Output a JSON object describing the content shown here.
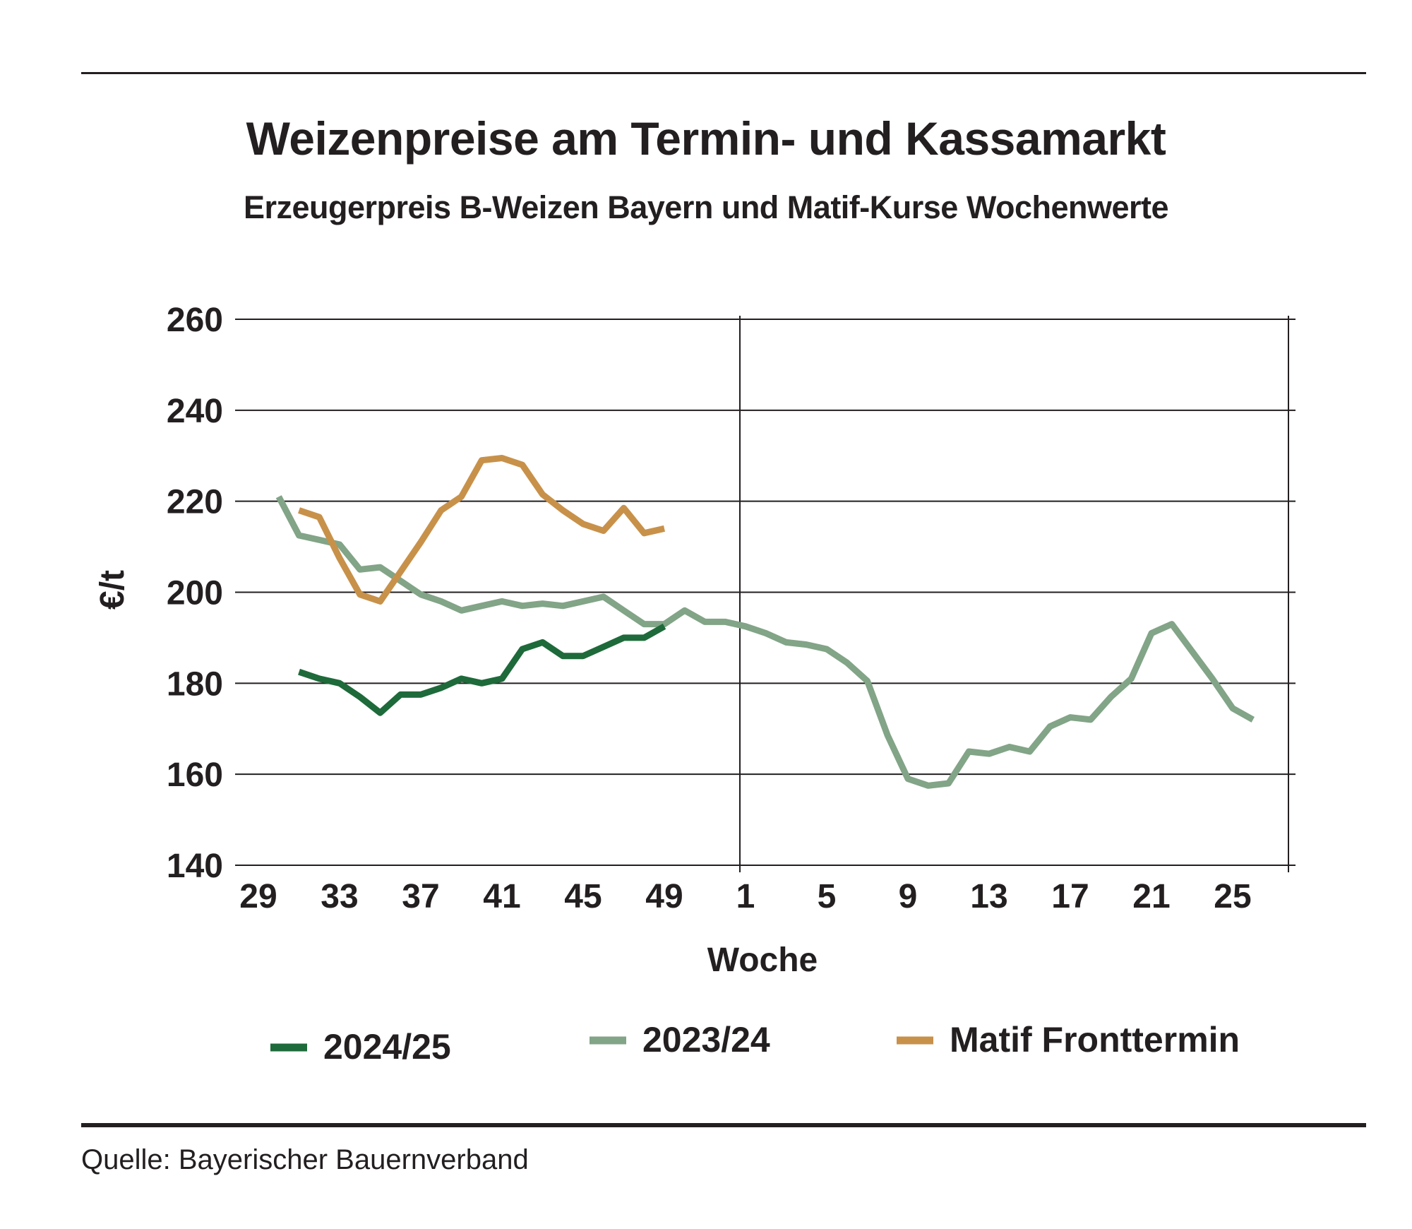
{
  "header": {
    "title": "Weizenpreise am Termin- und Kassamarkt",
    "subtitle": "Erzeugerpreis B-Weizen Bayern und Matif-Kurse Wochenwerte"
  },
  "footer": {
    "source": "Quelle: Bayerischer Bauernverband"
  },
  "chart_data": {
    "type": "line",
    "title": "Weizenpreise am Termin- und Kassamarkt",
    "subtitle": "Erzeugerpreis B-Weizen Bayern und Matif-Kurse Wochenwerte",
    "xlabel": "Woche",
    "ylabel": "€/t",
    "ylim": [
      140,
      260
    ],
    "yticks": [
      140,
      160,
      180,
      200,
      220,
      240,
      260
    ],
    "xticks": [
      "29",
      "33",
      "37",
      "41",
      "45",
      "49",
      "1",
      "5",
      "9",
      "13",
      "17",
      "21",
      "25"
    ],
    "grid": "horizontal",
    "legend_position": "bottom",
    "series": [
      {
        "name": "2024/25",
        "color": "#1e6a3a",
        "x": [
          31,
          32,
          33,
          34,
          35,
          36,
          37,
          38,
          39,
          40,
          41,
          42,
          43,
          44,
          45,
          46,
          47,
          48,
          49
        ],
        "y": [
          182.5,
          181,
          180,
          177,
          173.5,
          177.5,
          177.5,
          179,
          181,
          180,
          181,
          187.5,
          189,
          186,
          186,
          188,
          190,
          190,
          192.5
        ]
      },
      {
        "name": "2023/24",
        "color": "#82a487",
        "x": [
          30,
          31,
          32,
          33,
          34,
          35,
          36,
          37,
          38,
          39,
          40,
          41,
          42,
          43,
          44,
          45,
          46,
          47,
          48,
          49,
          50,
          51,
          52,
          1,
          2,
          3,
          4,
          5,
          6,
          7,
          8,
          9,
          10,
          11,
          12,
          13,
          14,
          15,
          16,
          17,
          18,
          19,
          20,
          21,
          22,
          23,
          24,
          25,
          26
        ],
        "y": [
          221,
          212.5,
          211.5,
          210.5,
          205,
          205.5,
          202.5,
          199.5,
          198,
          196,
          197,
          198,
          197,
          197.5,
          197,
          198,
          199,
          196,
          193,
          193,
          196,
          193.5,
          193.5,
          192.5,
          191,
          189,
          188.5,
          187.5,
          184.5,
          180.5,
          168.5,
          159,
          157.5,
          158,
          165,
          164.5,
          166,
          165,
          170.5,
          172.5,
          172,
          177,
          181,
          191,
          193,
          187,
          181,
          174.5,
          172
        ]
      },
      {
        "name": "Matif Fronttermin",
        "color": "#c8914a",
        "x": [
          31,
          32,
          33,
          34,
          35,
          36,
          37,
          38,
          39,
          40,
          41,
          42,
          43,
          44,
          45,
          46,
          47,
          48,
          49
        ],
        "y": [
          218,
          216.5,
          207.5,
          199.5,
          198,
          204.5,
          211,
          218,
          221,
          229,
          229.5,
          228,
          221.5,
          218,
          215,
          213.5,
          218.5,
          213,
          214
        ]
      }
    ]
  }
}
